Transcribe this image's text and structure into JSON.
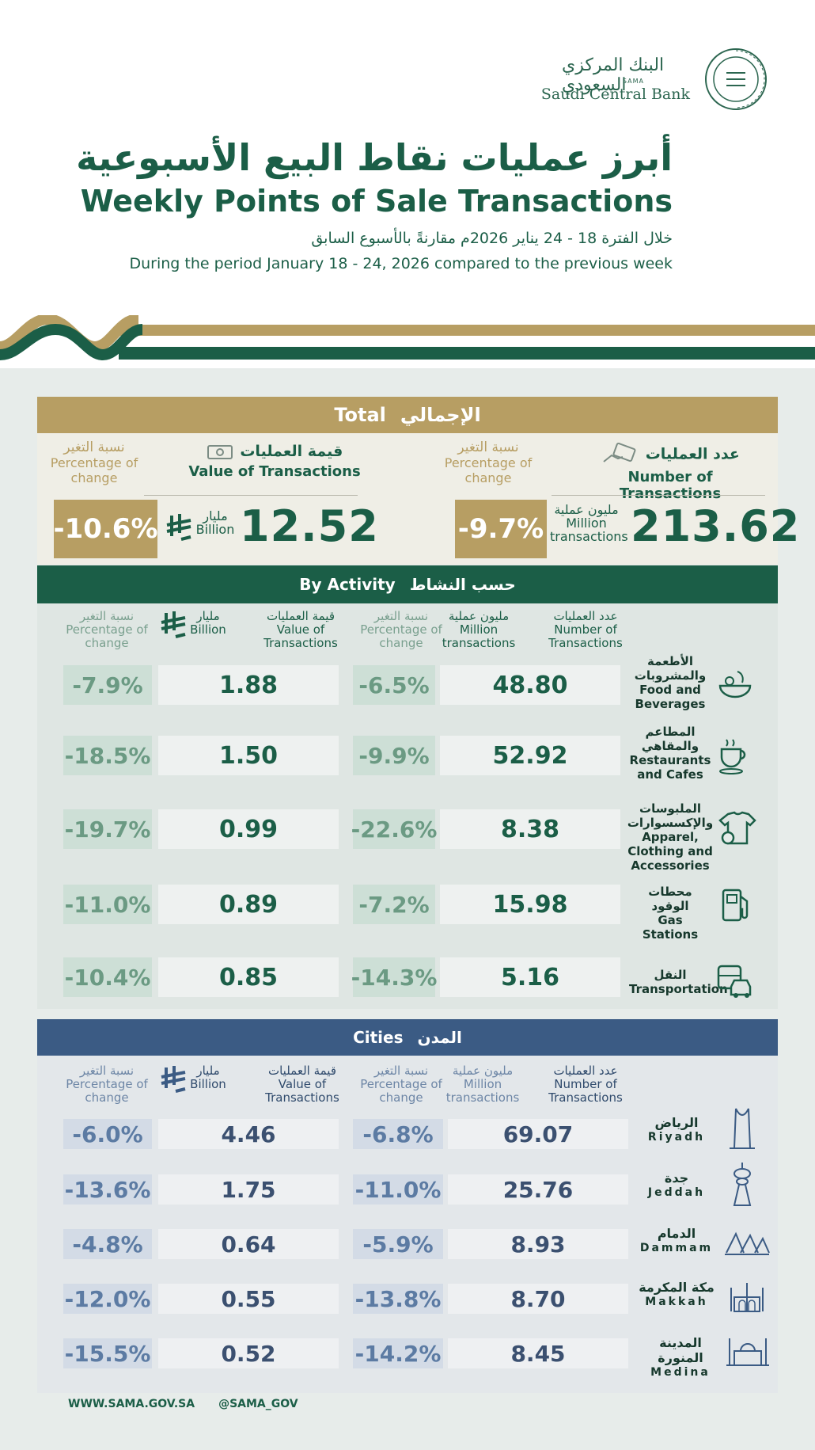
{
  "header": {
    "bank_name_ar": "البنك المركزي السعودي",
    "bank_abbr": "SAMA",
    "bank_name_en": "Saudi Central Bank",
    "title_ar": "أبرز عمليات نقاط البيع الأسبوعية",
    "title_en": "Weekly Points of Sale Transactions",
    "subtitle_ar": "خلال الفترة 18 - 24 يناير 2026م مقارنةً بالأسبوع السابق",
    "subtitle_en": "During the period January 18 - 24, 2026 compared to the previous week"
  },
  "colors": {
    "green": "#1b5e47",
    "gold": "#b79e63",
    "blue": "#3b5b84",
    "panel": "#e7ecea"
  },
  "total": {
    "band_en": "Total",
    "band_ar": "الإجمالي",
    "transactions": {
      "icon": "card-hand-icon",
      "label_ar": "عدد العمليات",
      "label_en": "Number of Transactions",
      "change_label_ar": "نسبة التغير",
      "change_label_en": "Percentage of change",
      "value": "213.62",
      "unit_ar": "مليون عملية",
      "unit_en": "Million transactions",
      "change": "-9.7%"
    },
    "value": {
      "icon": "banknote-icon",
      "label_ar": "قيمة العمليات",
      "label_en": "Value of Transactions",
      "change_label_ar": "نسبة التغير",
      "change_label_en": "Percentage of change",
      "value": "12.52",
      "unit_ar": "مليار",
      "unit_en": "Billion",
      "change": "-10.6%"
    }
  },
  "activity": {
    "band_en": "By Activity",
    "band_ar": "حسب النشاط",
    "headers": {
      "num_ar": "عدد العمليات",
      "num_en": "Number of Transactions",
      "unit_ar": "مليون عملية",
      "unit_en": "Million transactions",
      "change_ar": "نسبة التغير",
      "change_en": "Percentage of change",
      "val_ar": "قيمة العمليات",
      "val_en": "Value of Transactions",
      "billion_ar": "مليار",
      "billion_en": "Billion"
    },
    "rows": [
      {
        "ar": "الأطعمة والمشروبات",
        "en": "Food and Beverages",
        "icon": "food-bowl-icon",
        "count": "48.80",
        "count_change": "-6.5%",
        "value": "1.88",
        "value_change": "-7.9%"
      },
      {
        "ar": "المطاعم والمقاهي",
        "en": "Restaurants and Cafes",
        "icon": "coffee-cup-icon",
        "count": "52.92",
        "count_change": "-9.9%",
        "value": "1.50",
        "value_change": "-18.5%"
      },
      {
        "ar": "الملبوسات والإكسسوارات",
        "en": "Apparel, Clothing and Accessories",
        "icon": "shirt-watch-icon",
        "count": "8.38",
        "count_change": "-22.6%",
        "value": "0.99",
        "value_change": "-19.7%"
      },
      {
        "ar": "محطات الوقود",
        "en": "Gas Stations",
        "icon": "fuel-pump-icon",
        "count": "15.98",
        "count_change": "-7.2%",
        "value": "0.89",
        "value_change": "-11.0%"
      },
      {
        "ar": "النقل",
        "en": "Transportation",
        "icon": "bus-car-icon",
        "count": "5.16",
        "count_change": "-14.3%",
        "value": "0.85",
        "value_change": "-10.4%"
      }
    ]
  },
  "cities": {
    "band_en": "Cities",
    "band_ar": "المدن",
    "rows": [
      {
        "ar": "الرياض",
        "en": "Riyadh",
        "icon": "kingdom-tower-icon",
        "count": "69.07",
        "count_change": "-6.8%",
        "value": "4.46",
        "value_change": "-6.0%"
      },
      {
        "ar": "جدة",
        "en": "Jeddah",
        "icon": "jeddah-tower-icon",
        "count": "25.76",
        "count_change": "-11.0%",
        "value": "1.75",
        "value_change": "-13.6%"
      },
      {
        "ar": "الدمام",
        "en": "Dammam",
        "icon": "dammam-landmark-icon",
        "count": "8.93",
        "count_change": "-5.9%",
        "value": "0.64",
        "value_change": "-4.8%"
      },
      {
        "ar": "مكة المكرمة",
        "en": "Makkah",
        "icon": "makkah-mosque-icon",
        "count": "8.70",
        "count_change": "-13.8%",
        "value": "0.55",
        "value_change": "-12.0%"
      },
      {
        "ar": "المدينة المنورة",
        "en": "Medina",
        "icon": "medina-mosque-icon",
        "count": "8.45",
        "count_change": "-14.2%",
        "value": "0.52",
        "value_change": "-15.5%"
      }
    ]
  },
  "footer": {
    "website": "WWW.SAMA.GOV.SA",
    "handle": "@SAMA_GOV"
  }
}
